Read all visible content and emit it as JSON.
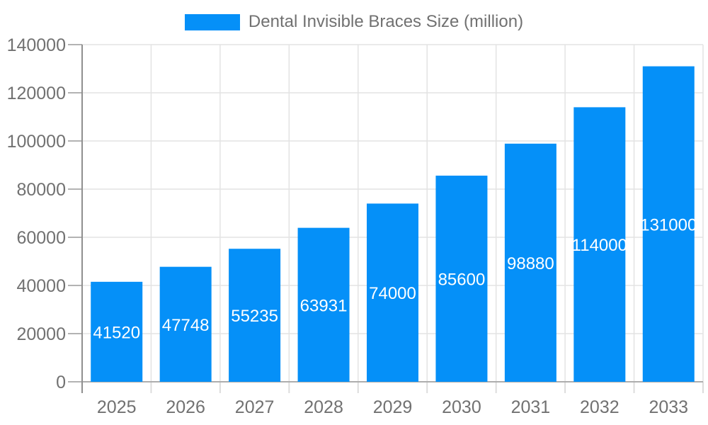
{
  "legend": {
    "label": "Dental Invisible Braces Size (million)"
  },
  "chart_data": {
    "type": "bar",
    "title": "Dental Invisible Braces Size (million)",
    "categories": [
      "2025",
      "2026",
      "2027",
      "2028",
      "2029",
      "2030",
      "2031",
      "2032",
      "2033"
    ],
    "values": [
      41520,
      47748,
      55235,
      63931,
      74000,
      85600,
      98880,
      114000,
      131000
    ],
    "xlabel": "",
    "ylabel": "",
    "ylim": [
      0,
      140000
    ],
    "ytick_step": 20000,
    "ytick_labels": [
      "0",
      "20000",
      "40000",
      "60000",
      "80000",
      "100000",
      "120000",
      "140000"
    ],
    "grid": true,
    "legend_position": "top",
    "bar_value_labels": "inside-centered"
  },
  "colors": {
    "bar": "#0590f8",
    "bar_label": "#ffffff",
    "grid": "#e3e3e3",
    "y_axis": "#8f8f8f",
    "x_axis": "#adadad",
    "y_tick": "#b3b3b3",
    "x_tick": "#dcdcdc",
    "text": "#717171"
  }
}
